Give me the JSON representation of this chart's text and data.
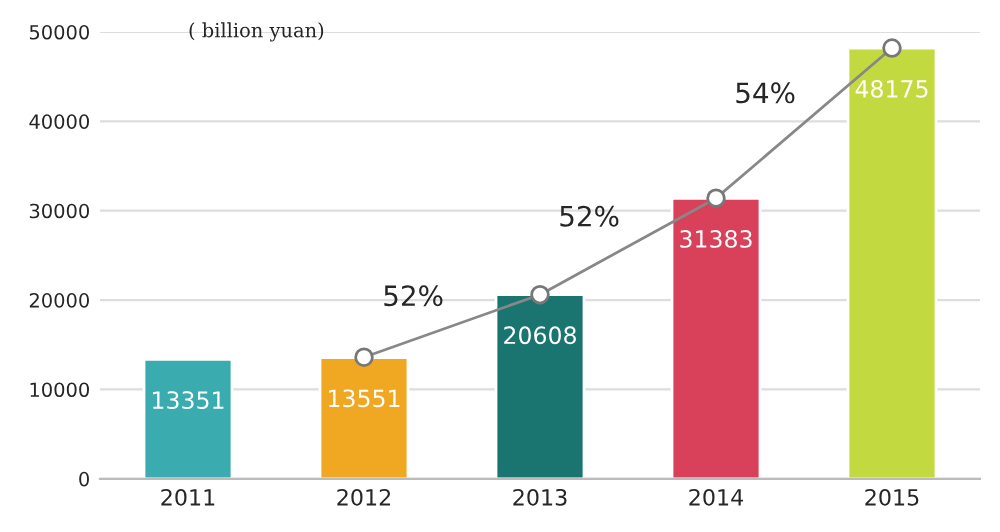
{
  "chart_data": {
    "type": "bar",
    "ylabel": "( billion yuan)",
    "categories": [
      "2011",
      "2012",
      "2013",
      "2014",
      "2015"
    ],
    "series": [
      {
        "values": [
          13351,
          13551,
          20608,
          31383,
          48175
        ],
        "value_labels": [
          "13351",
          "13551",
          "20608",
          "31383",
          "48175"
        ],
        "colors": [
          "#3aacb0",
          "#f0a823",
          "#1a7470",
          "#d9415a",
          "#c3d940"
        ]
      },
      {
        "type": "line",
        "color": "#888888",
        "values": [
          null,
          13600,
          20600,
          31400,
          48200
        ],
        "marker": "circle"
      }
    ],
    "ylim": [
      0,
      50000
    ],
    "yticks": [
      0,
      10000,
      20000,
      30000,
      40000,
      50000
    ],
    "grid": "y",
    "annotations": [
      "52%",
      "52%",
      "54%"
    ]
  }
}
